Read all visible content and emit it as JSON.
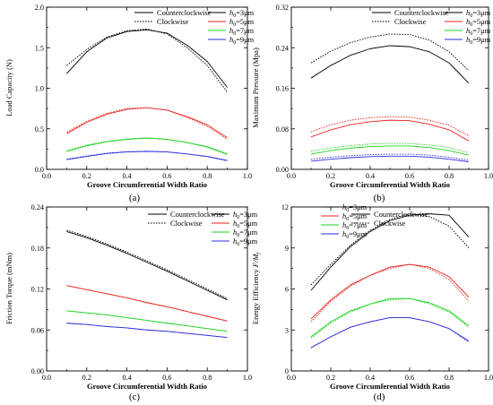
{
  "chart_data": [
    {
      "id": "a",
      "type": "line",
      "caption": "(a)",
      "xlabel": "Groove Circumferential Width Ratio",
      "ylabel": "Load Capacity (N)",
      "xlim": [
        0.0,
        1.0
      ],
      "ylim": [
        0.0,
        2.0
      ],
      "xticks": [
        "0.0",
        "0.2",
        "0.4",
        "0.6",
        "0.8",
        "1.0"
      ],
      "yticks": [
        "0.0",
        "0.5",
        "1.0",
        "1.5",
        "2.0"
      ],
      "x": [
        0.1,
        0.2,
        0.3,
        0.4,
        0.5,
        0.6,
        0.7,
        0.8,
        0.9
      ],
      "legend_direction": [
        "Counterclockwise",
        "Clockwise"
      ],
      "legend_h0": [
        "h0=3μm",
        "h0=5μm",
        "h0=7μm",
        "h0=9μm"
      ],
      "series": [
        {
          "h0": "3μm",
          "color": "#000000",
          "direction": "Counterclockwise",
          "values": [
            1.18,
            1.45,
            1.62,
            1.7,
            1.72,
            1.68,
            1.53,
            1.33,
            1.01
          ]
        },
        {
          "h0": "3μm",
          "color": "#000000",
          "direction": "Clockwise",
          "values": [
            1.28,
            1.48,
            1.63,
            1.71,
            1.73,
            1.67,
            1.5,
            1.28,
            0.95
          ]
        },
        {
          "h0": "5μm",
          "color": "#e8231e",
          "direction": "Counterclockwise",
          "values": [
            0.44,
            0.58,
            0.68,
            0.74,
            0.76,
            0.73,
            0.65,
            0.55,
            0.39
          ]
        },
        {
          "h0": "5μm",
          "color": "#e8231e",
          "direction": "Clockwise",
          "values": [
            0.46,
            0.59,
            0.69,
            0.75,
            0.76,
            0.73,
            0.64,
            0.53,
            0.37
          ]
        },
        {
          "h0": "7μm",
          "color": "#1fd11f",
          "direction": "Counterclockwise",
          "values": [
            0.22,
            0.29,
            0.34,
            0.37,
            0.385,
            0.37,
            0.33,
            0.28,
            0.19
          ]
        },
        {
          "h0": "7μm",
          "color": "#1fd11f",
          "direction": "Clockwise",
          "values": [
            0.23,
            0.3,
            0.345,
            0.375,
            0.39,
            0.37,
            0.33,
            0.27,
            0.18
          ]
        },
        {
          "h0": "9μm",
          "color": "#2b2bd9",
          "direction": "Counterclockwise",
          "values": [
            0.12,
            0.16,
            0.195,
            0.215,
            0.22,
            0.215,
            0.19,
            0.16,
            0.11
          ]
        },
        {
          "h0": "9μm",
          "color": "#2b2bd9",
          "direction": "Clockwise",
          "values": [
            0.125,
            0.165,
            0.2,
            0.218,
            0.225,
            0.215,
            0.19,
            0.155,
            0.105
          ]
        }
      ]
    },
    {
      "id": "b",
      "type": "line",
      "caption": "(b)",
      "xlabel": "Groove Circumferential Width Ratio",
      "ylabel": "Maximum Pressure (Mpa)",
      "xlim": [
        0.0,
        1.0
      ],
      "ylim": [
        0.0,
        0.32
      ],
      "xticks": [
        "0.0",
        "0.2",
        "0.4",
        "0.6",
        "0.8",
        "1.0"
      ],
      "yticks": [
        "0.00",
        "0.08",
        "0.16",
        "0.24",
        "0.32"
      ],
      "x": [
        0.1,
        0.2,
        0.3,
        0.4,
        0.5,
        0.6,
        0.7,
        0.8,
        0.9
      ],
      "legend_direction": [
        "Counterclockwise",
        "Clockwise"
      ],
      "legend_h0": [
        "h0=3μm",
        "h0=5μm",
        "h0=7μm",
        "h0=9μm"
      ],
      "series": [
        {
          "h0": "3μm",
          "color": "#000000",
          "direction": "Counterclockwise",
          "values": [
            0.18,
            0.205,
            0.225,
            0.238,
            0.244,
            0.242,
            0.232,
            0.21,
            0.17
          ]
        },
        {
          "h0": "3μm",
          "color": "#000000",
          "direction": "Clockwise",
          "values": [
            0.21,
            0.233,
            0.25,
            0.261,
            0.267,
            0.266,
            0.255,
            0.232,
            0.195
          ]
        },
        {
          "h0": "5μm",
          "color": "#e8231e",
          "direction": "Counterclockwise",
          "values": [
            0.064,
            0.078,
            0.088,
            0.094,
            0.097,
            0.096,
            0.089,
            0.078,
            0.056
          ]
        },
        {
          "h0": "5μm",
          "color": "#e8231e",
          "direction": "Clockwise",
          "values": [
            0.074,
            0.088,
            0.097,
            0.102,
            0.104,
            0.103,
            0.097,
            0.087,
            0.066
          ]
        },
        {
          "h0": "7μm",
          "color": "#1fd11f",
          "direction": "Counterclockwise",
          "values": [
            0.03,
            0.037,
            0.042,
            0.045,
            0.046,
            0.046,
            0.043,
            0.037,
            0.028
          ]
        },
        {
          "h0": "7μm",
          "color": "#1fd11f",
          "direction": "Clockwise",
          "values": [
            0.036,
            0.042,
            0.047,
            0.05,
            0.051,
            0.051,
            0.048,
            0.043,
            0.033
          ]
        },
        {
          "h0": "9μm",
          "color": "#2b2bd9",
          "direction": "Counterclockwise",
          "values": [
            0.016,
            0.02,
            0.023,
            0.025,
            0.026,
            0.026,
            0.024,
            0.02,
            0.015
          ]
        },
        {
          "h0": "9μm",
          "color": "#2b2bd9",
          "direction": "Clockwise",
          "values": [
            0.02,
            0.024,
            0.027,
            0.029,
            0.03,
            0.03,
            0.028,
            0.024,
            0.018
          ]
        }
      ]
    },
    {
      "id": "c",
      "type": "line",
      "caption": "(c)",
      "xlabel": "Groove Circumferential Width Ratio",
      "ylabel": "Friction Torque (mNm)",
      "xlim": [
        0.0,
        1.0
      ],
      "ylim": [
        0.0,
        0.24
      ],
      "xticks": [
        "0.0",
        "0.2",
        "0.4",
        "0.6",
        "0.8",
        "1.0"
      ],
      "yticks": [
        "0.00",
        "0.06",
        "0.12",
        "0.18",
        "0.24"
      ],
      "x": [
        0.1,
        0.2,
        0.3,
        0.4,
        0.5,
        0.6,
        0.7,
        0.8,
        0.9
      ],
      "legend_direction": [
        "Counterclockwise",
        "Clockwise"
      ],
      "legend_h0": [
        "h0=3μm",
        "h0=5μm",
        "h0=7μm",
        "h0=9μm"
      ],
      "series": [
        {
          "h0": "3μm",
          "color": "#000000",
          "direction": "Counterclockwise",
          "values": [
            0.204,
            0.195,
            0.184,
            0.172,
            0.159,
            0.146,
            0.132,
            0.118,
            0.104
          ]
        },
        {
          "h0": "3μm",
          "color": "#000000",
          "direction": "Clockwise",
          "values": [
            0.206,
            0.197,
            0.186,
            0.174,
            0.161,
            0.148,
            0.134,
            0.12,
            0.106
          ]
        },
        {
          "h0": "5μm",
          "color": "#e8231e",
          "direction": "Counterclockwise",
          "values": [
            0.125,
            0.119,
            0.113,
            0.107,
            0.1,
            0.094,
            0.087,
            0.08,
            0.073
          ]
        },
        {
          "h0": "5μm",
          "color": "#e8231e",
          "direction": "Clockwise",
          "values": [
            0.125,
            0.119,
            0.113,
            0.107,
            0.1,
            0.094,
            0.087,
            0.08,
            0.073
          ]
        },
        {
          "h0": "7μm",
          "color": "#1fd11f",
          "direction": "Counterclockwise",
          "values": [
            0.088,
            0.085,
            0.082,
            0.078,
            0.074,
            0.07,
            0.066,
            0.062,
            0.058
          ]
        },
        {
          "h0": "7μm",
          "color": "#1fd11f",
          "direction": "Clockwise",
          "values": [
            0.088,
            0.085,
            0.082,
            0.078,
            0.074,
            0.07,
            0.066,
            0.062,
            0.058
          ]
        },
        {
          "h0": "9μm",
          "color": "#2b2bd9",
          "direction": "Counterclockwise",
          "values": [
            0.07,
            0.068,
            0.065,
            0.063,
            0.06,
            0.058,
            0.055,
            0.052,
            0.049
          ]
        },
        {
          "h0": "9μm",
          "color": "#2b2bd9",
          "direction": "Clockwise",
          "values": [
            0.07,
            0.068,
            0.065,
            0.063,
            0.06,
            0.058,
            0.055,
            0.052,
            0.049
          ]
        }
      ]
    },
    {
      "id": "d",
      "type": "line",
      "caption": "(d)",
      "xlabel": "Groove Circumferential Width Ratio",
      "ylabel_main": "Energy Efficiency ",
      "ylabel_italic": "F/M",
      "ylabel_sub": "f",
      "xlim": [
        0.0,
        1.0
      ],
      "ylim": [
        0,
        12
      ],
      "xticks": [
        "0.0",
        "0.2",
        "0.4",
        "0.6",
        "0.8",
        "1.0"
      ],
      "yticks": [
        "0",
        "3",
        "6",
        "9",
        "12"
      ],
      "x": [
        0.1,
        0.2,
        0.3,
        0.4,
        0.5,
        0.6,
        0.7,
        0.8,
        0.9
      ],
      "legend_direction": [
        "Counterclockwise",
        "Clockwise"
      ],
      "legend_h0": [
        "h0=3μm",
        "h0=5μm",
        "h0=7μm",
        "h0=9μm"
      ],
      "series": [
        {
          "h0": "3μm",
          "color": "#000000",
          "direction": "Counterclockwise",
          "values": [
            5.9,
            7.6,
            9.1,
            10.2,
            11.0,
            11.4,
            11.5,
            11.4,
            9.8
          ]
        },
        {
          "h0": "3μm",
          "color": "#000000",
          "direction": "Clockwise",
          "values": [
            6.3,
            7.8,
            9.2,
            10.3,
            11.1,
            11.5,
            11.3,
            10.6,
            9.0
          ]
        },
        {
          "h0": "5μm",
          "color": "#e8231e",
          "direction": "Counterclockwise",
          "values": [
            3.8,
            5.2,
            6.3,
            7.0,
            7.6,
            7.8,
            7.6,
            6.9,
            5.4
          ]
        },
        {
          "h0": "5μm",
          "color": "#e8231e",
          "direction": "Clockwise",
          "values": [
            3.6,
            5.1,
            6.2,
            7.0,
            7.5,
            7.8,
            7.5,
            6.7,
            5.1
          ]
        },
        {
          "h0": "7μm",
          "color": "#1fd11f",
          "direction": "Counterclockwise",
          "values": [
            2.5,
            3.6,
            4.4,
            4.9,
            5.3,
            5.3,
            5.0,
            4.4,
            3.3
          ]
        },
        {
          "h0": "7μm",
          "color": "#1fd11f",
          "direction": "Clockwise",
          "values": [
            2.4,
            3.5,
            4.3,
            4.9,
            5.2,
            5.3,
            4.9,
            4.3,
            3.2
          ]
        },
        {
          "h0": "9μm",
          "color": "#2b2bd9",
          "direction": "Counterclockwise",
          "values": [
            1.7,
            2.5,
            3.2,
            3.6,
            3.9,
            3.9,
            3.6,
            3.1,
            2.2
          ]
        },
        {
          "h0": "9μm",
          "color": "#2b2bd9",
          "direction": "Clockwise",
          "values": [
            1.7,
            2.5,
            3.2,
            3.6,
            3.9,
            3.9,
            3.6,
            3.1,
            2.1
          ]
        }
      ]
    }
  ]
}
